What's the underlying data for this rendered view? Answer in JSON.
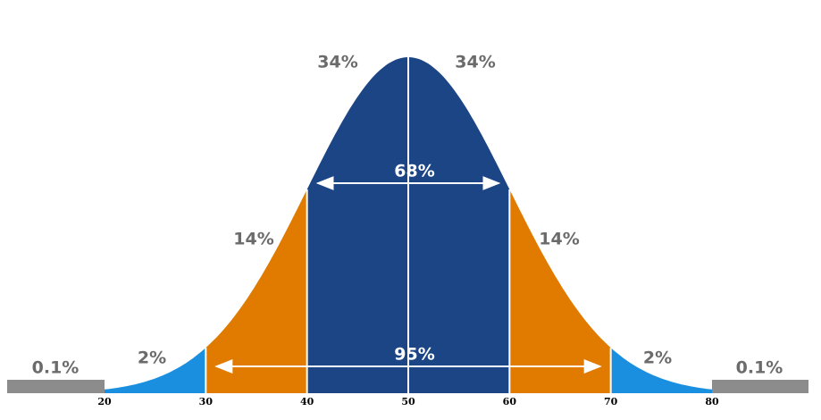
{
  "segments": [
    {
      "label": "0.1%"
    },
    {
      "label": "2%"
    },
    {
      "label": "14%"
    },
    {
      "label": "34%"
    },
    {
      "label": "34%"
    },
    {
      "label": "14%"
    },
    {
      "label": "2%"
    },
    {
      "label": "0.1%"
    }
  ],
  "ticks": [
    20,
    30,
    40,
    50,
    60,
    70,
    80
  ],
  "spans": [
    {
      "label": "68%"
    },
    {
      "label": "95%"
    }
  ]
}
